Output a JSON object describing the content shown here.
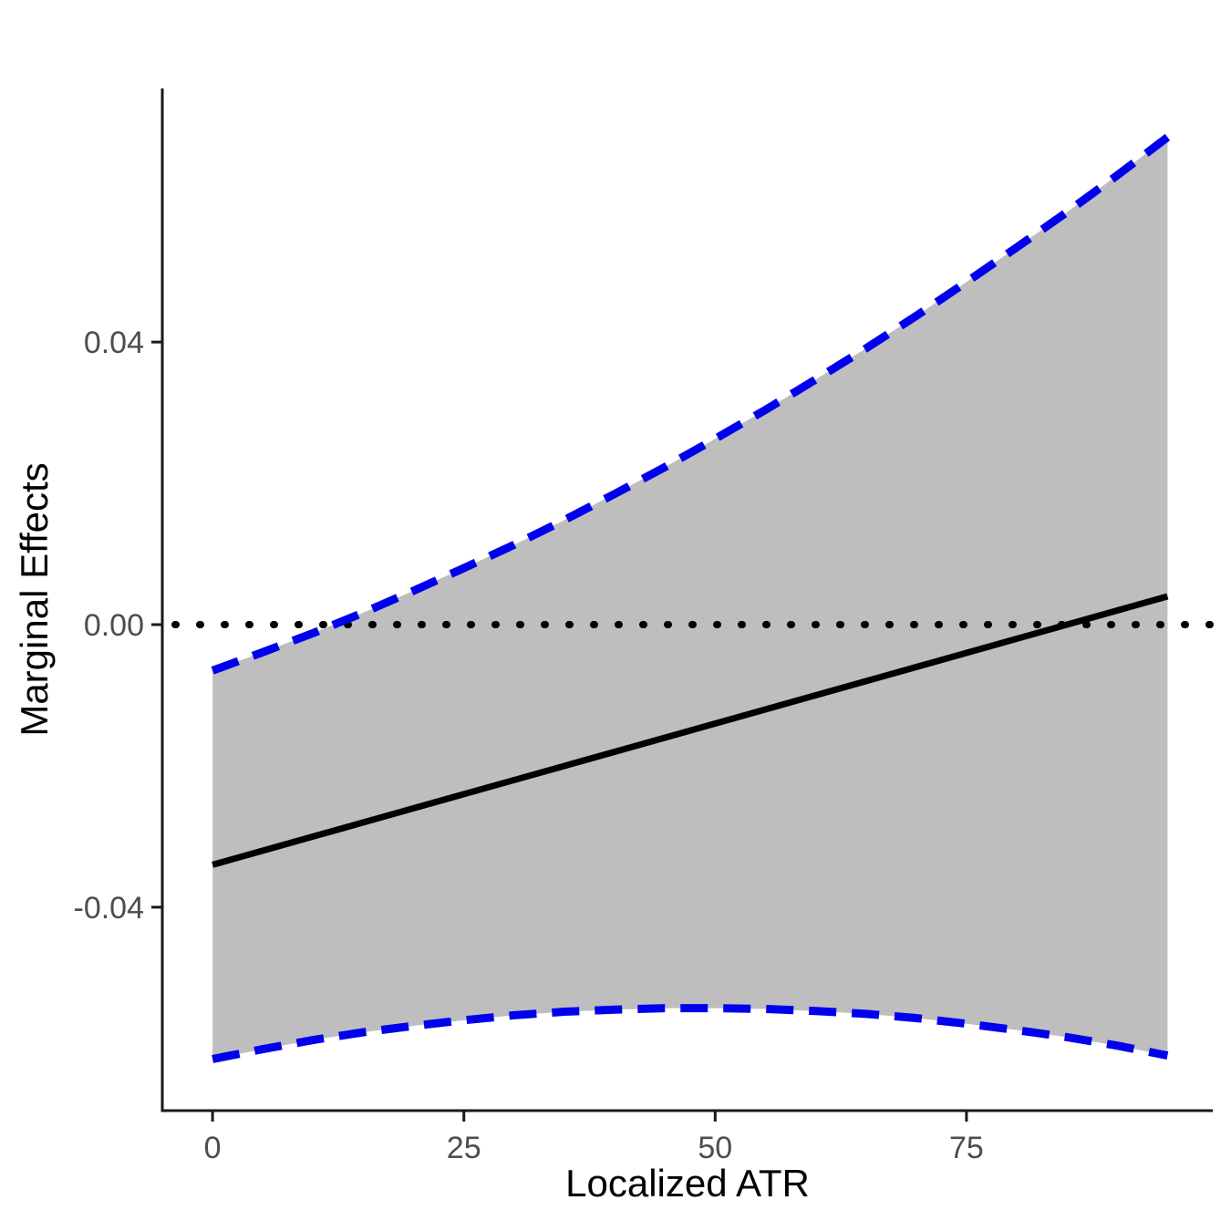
{
  "chart_data": {
    "type": "line",
    "title": "",
    "xlabel": "Localized ATR",
    "ylabel": "Marginal Effects",
    "xlim": [
      -5,
      99.5
    ],
    "ylim": [
      -0.0688,
      0.0759
    ],
    "grid": false,
    "legend": "none",
    "x_ticks": [
      {
        "value": 0,
        "label": "0"
      },
      {
        "value": 25,
        "label": "25"
      },
      {
        "value": 50,
        "label": "50"
      },
      {
        "value": 75,
        "label": "75"
      }
    ],
    "y_ticks": [
      {
        "value": 0.04,
        "label": "0.04"
      },
      {
        "value": 0.0,
        "label": "0.00"
      },
      {
        "value": -0.04,
        "label": "-0.04"
      }
    ],
    "x": [
      0,
      5,
      10,
      15,
      20,
      25,
      30,
      35,
      40,
      45,
      50,
      55,
      60,
      65,
      70,
      75,
      80,
      85,
      90,
      95
    ],
    "series": [
      {
        "name": "marginal_effect",
        "linetype": "solid",
        "color": "#000000",
        "values": [
          -0.034,
          -0.032,
          -0.03,
          -0.028,
          -0.026,
          -0.024,
          -0.022,
          -0.02,
          -0.018,
          -0.016,
          -0.014,
          -0.012,
          -0.01,
          -0.008,
          -0.006,
          -0.004,
          -0.002,
          0.0,
          0.002,
          0.004
        ]
      },
      {
        "name": "upper_95ci",
        "linetype": "dashed",
        "color": "#0000EE",
        "values": [
          -0.0065,
          -0.0039,
          -0.0012,
          0.0017,
          0.0048,
          0.008,
          0.0113,
          0.0148,
          0.0185,
          0.0223,
          0.0263,
          0.0304,
          0.0347,
          0.0391,
          0.0437,
          0.0485,
          0.0534,
          0.0584,
          0.0636,
          0.069
        ]
      },
      {
        "name": "lower_95ci",
        "linetype": "dashed",
        "color": "#0000EE",
        "values": [
          -0.0615,
          -0.0601,
          -0.0588,
          -0.0577,
          -0.0568,
          -0.056,
          -0.0553,
          -0.0548,
          -0.0545,
          -0.0543,
          -0.0543,
          -0.0544,
          -0.0547,
          -0.0551,
          -0.0557,
          -0.0565,
          -0.0574,
          -0.0584,
          -0.0596,
          -0.061
        ]
      }
    ],
    "band": {
      "fill": "#BEBEBE",
      "upper": "upper_95ci",
      "lower": "lower_95ci"
    },
    "reference_line": {
      "y": 0,
      "linetype": "dotted",
      "color": "#000000"
    },
    "colors": {
      "mean_line": "#000000",
      "ci_line": "#0000EE",
      "axis": "#1A1A1A",
      "tick_label": "#4D4D4D",
      "axis_title": "#000000",
      "background": "#FFFFFF"
    }
  }
}
